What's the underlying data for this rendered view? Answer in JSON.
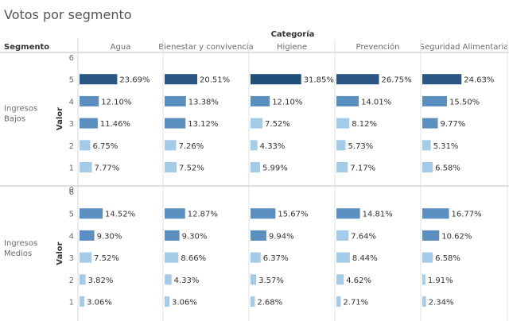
{
  "title": "Votos por segmento",
  "colors": {
    "bar_dark": "#2a5783",
    "bar_mid": "#5b8fc0",
    "bar_light": "#a4cbe8",
    "text": "#333333",
    "muted": "#6b6b6b",
    "divider": "#bfbfbf"
  },
  "chart_data": {
    "type": "bar",
    "orientation": "horizontal",
    "title": "Votos por segmento",
    "column_header": "Categoría",
    "row_header": "Segmento",
    "ylabel": "Valor",
    "categories": [
      "Agua",
      "Bienestar y convivencia",
      "Higiene",
      "Prevención",
      "Seguridad Alimentaria"
    ],
    "segments": [
      "Ingresos Bajos",
      "Ingresos Medios"
    ],
    "y_ticks": [
      6,
      5,
      4,
      3,
      2,
      1,
      0
    ],
    "bar_values": [
      5,
      4,
      3,
      2,
      1
    ],
    "unit": "%",
    "xlim": [
      0,
      33
    ],
    "data": [
      {
        "segment": "Ingresos Bajos",
        "values": {
          "5": [
            23.69,
            20.51,
            31.85,
            26.75,
            24.63
          ],
          "4": [
            12.1,
            13.38,
            12.1,
            14.01,
            15.5
          ],
          "3": [
            11.46,
            13.12,
            7.52,
            8.12,
            9.77
          ],
          "2": [
            6.75,
            7.26,
            4.33,
            5.73,
            5.31
          ],
          "1": [
            7.77,
            7.52,
            5.99,
            7.17,
            6.58
          ]
        }
      },
      {
        "segment": "Ingresos Medios",
        "values": {
          "5": [
            14.52,
            12.87,
            15.67,
            14.81,
            16.77
          ],
          "4": [
            9.3,
            9.3,
            9.94,
            7.64,
            10.62
          ],
          "3": [
            7.52,
            8.66,
            6.37,
            8.44,
            6.58
          ],
          "2": [
            3.82,
            4.33,
            3.57,
            4.62,
            1.91
          ],
          "1": [
            3.06,
            3.06,
            2.68,
            2.71,
            2.34
          ]
        }
      }
    ]
  }
}
